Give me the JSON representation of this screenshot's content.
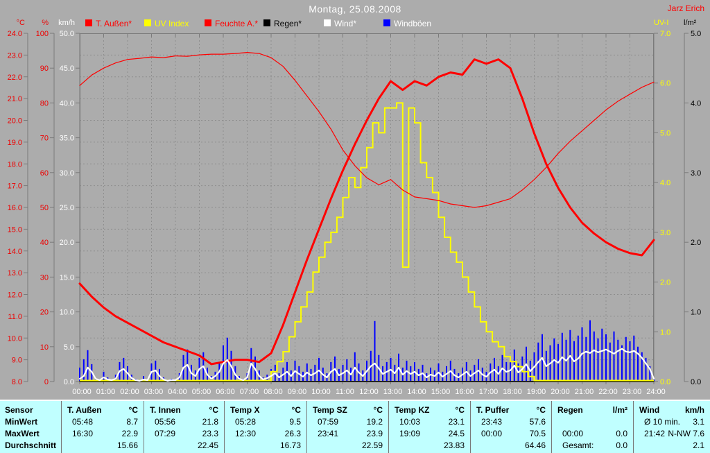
{
  "header": {
    "title": "Montag, 25.08.2008",
    "author": "Jarz Erich"
  },
  "units_labels": {
    "left": [
      "°C",
      "%",
      "km/h"
    ],
    "right": [
      "UV-I",
      "l/m²"
    ]
  },
  "legend": [
    {
      "label": "T. Außen*",
      "swatch": "#FF0000",
      "text_color": "#FF0000"
    },
    {
      "label": "UV Index",
      "swatch": "#FFFF00",
      "text_color": "#FFFF00"
    },
    {
      "label": "Feuchte A.*",
      "swatch": "#FF0000",
      "text_color": "#FF0000"
    },
    {
      "label": "Regen*",
      "swatch": "#000000",
      "text_color": "#000000"
    },
    {
      "label": "Wind*",
      "swatch": "#FFFFFF",
      "text_color": "#FFFFFF"
    },
    {
      "label": "Windböen",
      "swatch": "#0000FF",
      "text_color": "#FFFFFF"
    }
  ],
  "chart_data": {
    "type": "line",
    "title": "Montag, 25.08.2008",
    "grid": true,
    "x_axis": {
      "start": 0,
      "end": 24,
      "labels": [
        "00:00",
        "01:00",
        "02:00",
        "03:00",
        "04:00",
        "05:00",
        "06:00",
        "07:00",
        "08:00",
        "09:00",
        "10:00",
        "11:00",
        "12:00",
        "13:00",
        "14:00",
        "15:00",
        "16:00",
        "17:00",
        "18:00",
        "19:00",
        "20:00",
        "21:00",
        "22:00",
        "23:00",
        "24:00"
      ]
    },
    "y_axes_left": [
      {
        "name": "°C",
        "color": "#EE0000",
        "min": 8,
        "max": 24,
        "step": 1,
        "decimals": 1
      },
      {
        "name": "%",
        "color": "#EE0000",
        "min": 0,
        "max": 100,
        "step": 10,
        "decimals": 0
      },
      {
        "name": "km/h",
        "color": "#FFFFFF",
        "min": 0,
        "max": 50,
        "step": 5,
        "decimals": 1
      }
    ],
    "y_axes_right": [
      {
        "name": "UV-I",
        "color": "#FFFF00",
        "min": 0,
        "max": 7,
        "step": 1,
        "decimals": 1
      },
      {
        "name": "l/m²",
        "color": "#000000",
        "min": 0,
        "max": 5,
        "step": 1,
        "decimals": 1
      }
    ],
    "series": [
      {
        "name": "Windböen",
        "axis": "km/h",
        "color": "#0000FF",
        "width": 2,
        "kind": "bars",
        "step_h": 0.16667,
        "values": [
          2.0,
          3.2,
          4.5,
          2.5,
          0.5,
          0.2,
          1.4,
          0.6,
          0.3,
          1.0,
          2.8,
          3.4,
          2.2,
          1.0,
          0.4,
          0.2,
          0.8,
          0.3,
          2.6,
          3.0,
          1.8,
          0.6,
          0.2,
          0.4,
          0.3,
          1.2,
          3.8,
          4.6,
          2.4,
          1.6,
          3.4,
          4.2,
          2.0,
          0.8,
          1.4,
          2.6,
          5.2,
          6.3,
          4.4,
          2.2,
          0.8,
          0.4,
          1.2,
          4.8,
          3.6,
          1.6,
          0.6,
          1.0,
          1.8,
          2.4,
          1.2,
          2.0,
          2.8,
          1.6,
          3.0,
          2.2,
          1.4,
          2.6,
          1.8,
          2.4,
          3.4,
          2.0,
          1.2,
          2.8,
          3.6,
          1.8,
          2.4,
          3.2,
          2.0,
          4.2,
          2.6,
          1.6,
          3.0,
          4.4,
          8.7,
          3.8,
          2.2,
          2.8,
          3.4,
          2.4,
          4.0,
          2.0,
          3.0,
          2.2,
          2.8,
          1.8,
          2.4,
          1.2,
          2.0,
          1.6,
          2.6,
          1.4,
          2.2,
          3.0,
          1.8,
          1.2,
          2.0,
          2.8,
          1.6,
          2.4,
          3.2,
          2.0,
          1.4,
          2.6,
          3.4,
          2.2,
          3.8,
          2.8,
          3.2,
          4.6,
          2.6,
          3.6,
          5.0,
          3.0,
          4.2,
          5.6,
          6.8,
          4.4,
          5.2,
          6.2,
          5.4,
          7.0,
          6.0,
          7.4,
          5.8,
          6.6,
          7.8,
          6.4,
          8.8,
          7.2,
          6.2,
          7.6,
          6.8,
          5.6,
          7.2,
          6.0,
          5.2,
          6.4,
          5.8,
          6.6,
          5.0,
          4.2,
          3.4,
          2.2,
          0.3
        ]
      },
      {
        "name": "Regen",
        "axis": "l/m²",
        "color": "#000000",
        "width": 1.5,
        "kind": "line",
        "step_h": 24,
        "values": [
          0,
          0
        ]
      },
      {
        "name": "UV Index",
        "axis": "UV-I",
        "color": "#FFFF00",
        "width": 2,
        "kind": "step",
        "step_h": 0.25,
        "values": [
          0,
          0,
          0,
          0,
          0,
          0,
          0,
          0,
          0,
          0,
          0,
          0,
          0,
          0,
          0,
          0,
          0,
          0,
          0,
          0,
          0,
          0,
          0,
          0,
          0,
          0,
          0,
          0,
          0,
          0,
          0,
          0,
          0.2,
          0.4,
          0.6,
          0.9,
          1.2,
          1.5,
          1.8,
          2.2,
          2.5,
          2.8,
          3.0,
          3.3,
          3.7,
          4.1,
          3.9,
          4.3,
          4.7,
          5.2,
          5.0,
          5.5,
          5.5,
          5.6,
          2.3,
          5.5,
          5.2,
          4.4,
          4.1,
          3.8,
          3.3,
          2.9,
          2.6,
          2.4,
          2.1,
          1.8,
          1.5,
          1.2,
          1.0,
          0.8,
          0.7,
          0.5,
          0.4,
          0.3,
          0.2,
          0.1,
          0,
          0,
          0,
          0,
          0,
          0,
          0,
          0,
          0,
          0,
          0,
          0,
          0,
          0,
          0,
          0,
          0,
          0,
          0,
          0,
          0
        ]
      },
      {
        "name": "Feuchte A.",
        "axis": "%",
        "color": "#FF0000",
        "width": 1.2,
        "kind": "line",
        "step_h": 0.5,
        "values": [
          85,
          88,
          90,
          91.5,
          92.5,
          92.8,
          93.2,
          93.0,
          93.5,
          93.4,
          93.8,
          94.0,
          94.0,
          94.2,
          94.5,
          94.2,
          93.0,
          90.5,
          86.5,
          82.0,
          77.5,
          72.5,
          66.5,
          62.0,
          58.5,
          56.5,
          58.0,
          55.0,
          53.0,
          52.5,
          52.0,
          51.0,
          50.5,
          50.0,
          50.5,
          51.5,
          52.5,
          55.0,
          58.0,
          61.5,
          65.5,
          69.0,
          72.0,
          75.0,
          78.0,
          80.5,
          82.5,
          84.5,
          86.0
        ]
      },
      {
        "name": "T. Außen",
        "axis": "°C",
        "color": "#FF0000",
        "width": 3,
        "kind": "line",
        "step_h": 0.5,
        "values": [
          12.5,
          11.9,
          11.4,
          11.0,
          10.7,
          10.4,
          10.1,
          9.8,
          9.6,
          9.4,
          9.2,
          8.8,
          8.9,
          9.0,
          9.0,
          8.9,
          9.3,
          10.6,
          12.1,
          13.6,
          15.0,
          16.4,
          17.7,
          18.9,
          20.0,
          21.0,
          21.8,
          21.4,
          21.8,
          21.6,
          22.0,
          22.2,
          22.1,
          22.8,
          22.6,
          22.8,
          22.4,
          21.0,
          19.4,
          18.0,
          16.9,
          16.0,
          15.3,
          14.8,
          14.4,
          14.1,
          13.9,
          13.8,
          14.5
        ]
      },
      {
        "name": "Wind",
        "axis": "km/h",
        "color": "#FFFFFF",
        "width": 2.2,
        "kind": "line",
        "step_h": 0.16667,
        "values": [
          0.4,
          0.8,
          2.0,
          1.4,
          0.4,
          0.2,
          0.6,
          0.3,
          0.2,
          0.4,
          1.5,
          1.8,
          1.2,
          0.5,
          0.2,
          0.1,
          0.3,
          0.2,
          1.4,
          1.6,
          0.8,
          0.3,
          0.1,
          0.2,
          0.2,
          0.6,
          2.0,
          2.4,
          1.2,
          0.8,
          1.8,
          2.2,
          1.0,
          0.4,
          0.8,
          1.4,
          2.6,
          3.1,
          2.2,
          1.0,
          0.4,
          0.2,
          0.6,
          2.6,
          1.8,
          0.8,
          0.3,
          0.5,
          0.8,
          1.2,
          0.6,
          1.0,
          1.4,
          0.8,
          1.5,
          1.1,
          0.7,
          1.3,
          0.9,
          1.2,
          1.6,
          1.0,
          0.6,
          1.4,
          1.8,
          0.9,
          1.2,
          1.6,
          1.0,
          2.0,
          1.3,
          0.8,
          1.5,
          2.2,
          2.6,
          1.9,
          1.1,
          1.4,
          1.7,
          1.2,
          2.0,
          1.0,
          1.5,
          1.1,
          1.4,
          0.9,
          1.2,
          0.6,
          1.0,
          0.8,
          1.3,
          0.7,
          1.1,
          1.5,
          0.9,
          0.6,
          1.0,
          1.4,
          0.8,
          1.2,
          1.6,
          1.0,
          0.7,
          1.3,
          1.7,
          1.1,
          1.9,
          1.4,
          1.6,
          2.3,
          1.3,
          1.8,
          2.5,
          1.5,
          2.1,
          2.8,
          3.4,
          2.2,
          2.6,
          3.1,
          2.7,
          3.5,
          3.0,
          3.7,
          2.9,
          3.3,
          4.0,
          4.3,
          4.1,
          4.5,
          4.2,
          4.4,
          4.6,
          4.3,
          4.0,
          4.4,
          4.7,
          4.3,
          4.2,
          4.4,
          4.0,
          3.4,
          2.6,
          1.8,
          0.4
        ]
      }
    ]
  },
  "table": {
    "row_labels": [
      "Sensor",
      "MinWert",
      "MaxWert",
      "Durchschnitt"
    ],
    "columns": [
      {
        "name": "T. Außen",
        "unit": "°C",
        "rows": [
          [
            "05:48",
            "8.7"
          ],
          [
            "16:30",
            "22.9"
          ],
          [
            "",
            "15.66"
          ]
        ]
      },
      {
        "name": "T. Innen",
        "unit": "°C",
        "rows": [
          [
            "05:56",
            "21.8"
          ],
          [
            "07:29",
            "23.3"
          ],
          [
            "",
            "22.45"
          ]
        ]
      },
      {
        "name": "Temp X",
        "unit": "°C",
        "rows": [
          [
            "05:28",
            "9.5"
          ],
          [
            "12:30",
            "26.3"
          ],
          [
            "",
            "16.73"
          ]
        ]
      },
      {
        "name": "Temp SZ",
        "unit": "°C",
        "rows": [
          [
            "07:59",
            "19.2"
          ],
          [
            "23:41",
            "23.9"
          ],
          [
            "",
            "22.59"
          ]
        ]
      },
      {
        "name": "Temp KZ",
        "unit": "°C",
        "rows": [
          [
            "10:03",
            "23.1"
          ],
          [
            "19:09",
            "24.5"
          ],
          [
            "",
            "23.83"
          ]
        ]
      },
      {
        "name": "T. Puffer",
        "unit": "°C",
        "rows": [
          [
            "23:43",
            "57.6"
          ],
          [
            "00:00",
            "70.5"
          ],
          [
            "",
            "64.46"
          ]
        ]
      },
      {
        "name": "Regen",
        "unit": "l/m²",
        "rows": [
          [
            "",
            ""
          ],
          [
            "00:00",
            "0.0"
          ],
          [
            "Gesamt:",
            "0.0"
          ]
        ]
      },
      {
        "name": "Wind",
        "unit": "km/h",
        "rows": [
          [
            "Ø 10 min.",
            "3.1"
          ],
          [
            "21:42",
            "N-NW 7.6"
          ],
          [
            "",
            "2.1"
          ]
        ]
      }
    ]
  }
}
